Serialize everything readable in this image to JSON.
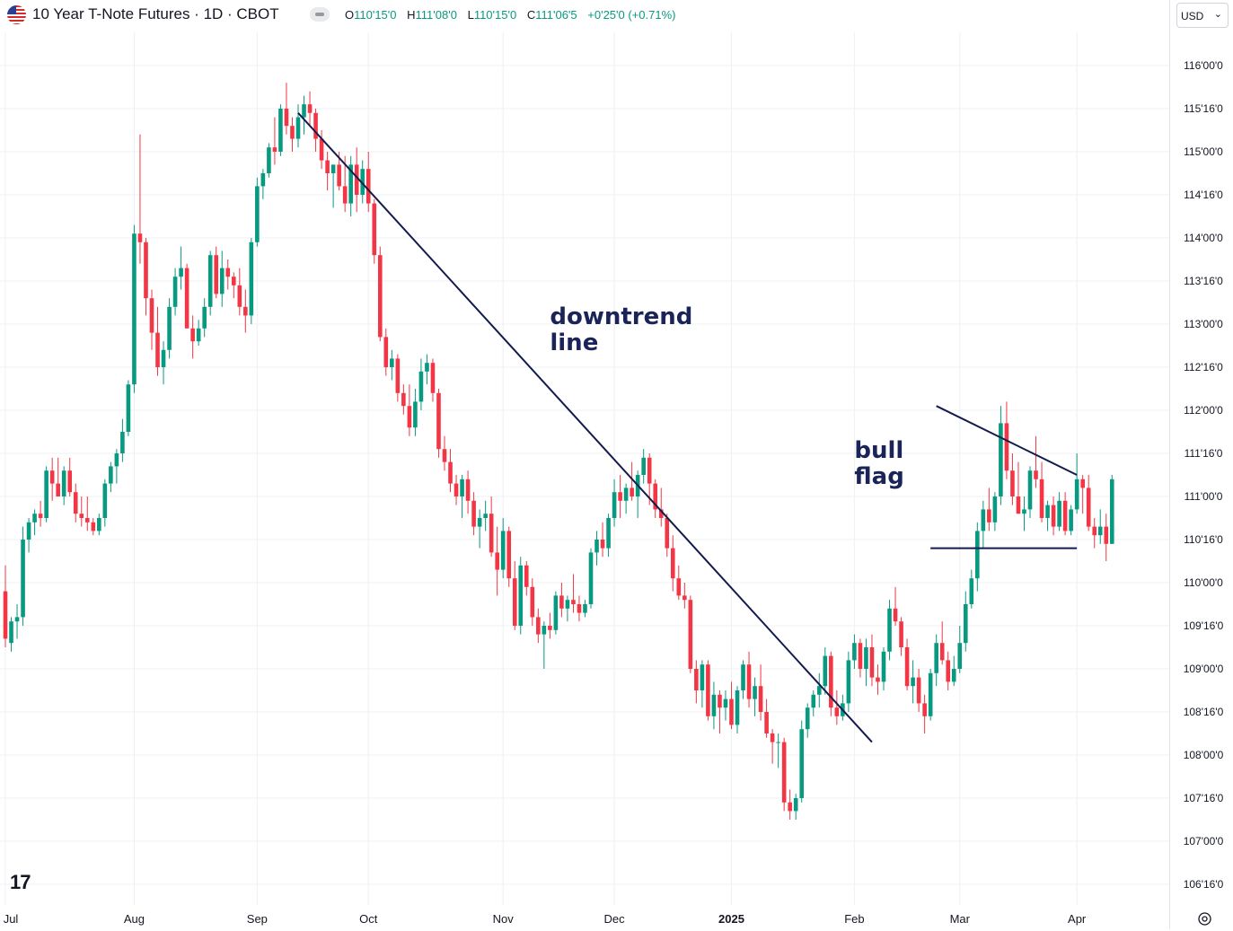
{
  "header": {
    "title": "10 Year T-Note Futures · 1D · CBOT",
    "ohlc": [
      {
        "key": "O",
        "value": "110'15'0"
      },
      {
        "key": "H",
        "value": "111'08'0"
      },
      {
        "key": "L",
        "value": "110'15'0"
      },
      {
        "key": "C",
        "value": "111'06'5"
      }
    ],
    "change": "+0'25'0 (+0.71%)",
    "currency": "USD",
    "flag_icon": "us-flag-icon",
    "logo_text": "17"
  },
  "colors": {
    "up": "#089981",
    "down": "#f23645",
    "trendline": "#131b4d",
    "annotation": "#1a2459",
    "grid": "#eef0f3"
  },
  "chart_data": {
    "type": "candlestick",
    "unit": "points (32nds notation)",
    "ylim": [
      106.25,
      116.5
    ],
    "y_ticks": [
      {
        "value": 106.5,
        "label": "106'16'0"
      },
      {
        "value": 107.0,
        "label": "107'00'0"
      },
      {
        "value": 107.5,
        "label": "107'16'0"
      },
      {
        "value": 108.0,
        "label": "108'00'0"
      },
      {
        "value": 108.5,
        "label": "108'16'0"
      },
      {
        "value": 109.0,
        "label": "109'00'0"
      },
      {
        "value": 109.5,
        "label": "109'16'0"
      },
      {
        "value": 110.0,
        "label": "110'00'0"
      },
      {
        "value": 110.5,
        "label": "110'16'0"
      },
      {
        "value": 111.0,
        "label": "111'00'0"
      },
      {
        "value": 111.5,
        "label": "111'16'0"
      },
      {
        "value": 112.0,
        "label": "112'00'0"
      },
      {
        "value": 112.5,
        "label": "112'16'0"
      },
      {
        "value": 113.0,
        "label": "113'00'0"
      },
      {
        "value": 113.5,
        "label": "113'16'0"
      },
      {
        "value": 114.0,
        "label": "114'00'0"
      },
      {
        "value": 114.5,
        "label": "114'16'0"
      },
      {
        "value": 115.0,
        "label": "115'00'0"
      },
      {
        "value": 115.5,
        "label": "115'16'0"
      },
      {
        "value": 116.0,
        "label": "116'00'0"
      }
    ],
    "x_ticks": [
      {
        "label": "Jul",
        "index": 0,
        "bold": false
      },
      {
        "label": "Aug",
        "index": 22,
        "bold": false
      },
      {
        "label": "Sep",
        "index": 43,
        "bold": false
      },
      {
        "label": "Oct",
        "index": 62,
        "bold": false
      },
      {
        "label": "Nov",
        "index": 85,
        "bold": false
      },
      {
        "label": "Dec",
        "index": 104,
        "bold": false
      },
      {
        "label": "2025",
        "index": 124,
        "bold": true
      },
      {
        "label": "Feb",
        "index": 145,
        "bold": false
      },
      {
        "label": "Mar",
        "index": 163,
        "bold": false
      },
      {
        "label": "Apr",
        "index": 183,
        "bold": false
      }
    ],
    "candles": [
      [
        109.9,
        110.2,
        109.25,
        109.35
      ],
      [
        109.3,
        109.6,
        109.2,
        109.55
      ],
      [
        109.55,
        109.75,
        109.35,
        109.6
      ],
      [
        109.6,
        110.65,
        109.5,
        110.5
      ],
      [
        110.5,
        110.75,
        110.35,
        110.7
      ],
      [
        110.7,
        110.85,
        110.55,
        110.8
      ],
      [
        110.8,
        110.95,
        110.65,
        110.75
      ],
      [
        110.75,
        111.35,
        110.7,
        111.3
      ],
      [
        111.3,
        111.45,
        110.95,
        111.15
      ],
      [
        111.15,
        111.45,
        111.0,
        111.0
      ],
      [
        111.0,
        111.35,
        110.9,
        111.3
      ],
      [
        111.3,
        111.45,
        111.0,
        111.05
      ],
      [
        111.05,
        111.15,
        110.7,
        110.8
      ],
      [
        110.8,
        111.0,
        110.65,
        110.75
      ],
      [
        110.75,
        111.0,
        110.6,
        110.7
      ],
      [
        110.7,
        110.75,
        110.55,
        110.6
      ],
      [
        110.6,
        110.8,
        110.55,
        110.75
      ],
      [
        110.75,
        111.2,
        110.65,
        111.15
      ],
      [
        111.15,
        111.4,
        111.05,
        111.35
      ],
      [
        111.35,
        111.55,
        111.15,
        111.5
      ],
      [
        111.5,
        111.9,
        111.4,
        111.75
      ],
      [
        111.75,
        112.35,
        111.7,
        112.3
      ],
      [
        112.3,
        114.15,
        112.2,
        114.05
      ],
      [
        114.05,
        115.2,
        113.7,
        113.95
      ],
      [
        113.95,
        114.0,
        113.1,
        113.3
      ],
      [
        113.3,
        113.4,
        112.7,
        112.9
      ],
      [
        112.9,
        113.2,
        112.4,
        112.5
      ],
      [
        112.5,
        112.8,
        112.3,
        112.7
      ],
      [
        112.7,
        113.3,
        112.6,
        113.2
      ],
      [
        113.2,
        113.65,
        113.1,
        113.55
      ],
      [
        113.55,
        113.9,
        113.4,
        113.65
      ],
      [
        113.65,
        113.7,
        113.0,
        112.95
      ],
      [
        112.95,
        113.1,
        112.6,
        112.8
      ],
      [
        112.8,
        113.05,
        112.75,
        112.95
      ],
      [
        112.95,
        113.3,
        112.85,
        113.2
      ],
      [
        113.2,
        113.85,
        113.1,
        113.8
      ],
      [
        113.8,
        113.9,
        113.3,
        113.35
      ],
      [
        113.35,
        113.85,
        113.2,
        113.65
      ],
      [
        113.65,
        113.75,
        113.4,
        113.55
      ],
      [
        113.55,
        113.6,
        113.3,
        113.45
      ],
      [
        113.45,
        113.65,
        113.1,
        113.2
      ],
      [
        113.2,
        113.4,
        112.9,
        113.1
      ],
      [
        113.1,
        114.0,
        113.0,
        113.95
      ],
      [
        113.95,
        114.7,
        113.9,
        114.6
      ],
      [
        114.6,
        114.8,
        114.45,
        114.75
      ],
      [
        114.75,
        115.1,
        114.7,
        115.05
      ],
      [
        115.05,
        115.4,
        114.85,
        115.0
      ],
      [
        115.0,
        115.55,
        114.95,
        115.5
      ],
      [
        115.5,
        115.8,
        115.2,
        115.3
      ],
      [
        115.3,
        115.4,
        115.0,
        115.15
      ],
      [
        115.15,
        115.55,
        115.05,
        115.4
      ],
      [
        115.4,
        115.65,
        115.2,
        115.55
      ],
      [
        115.55,
        115.7,
        115.3,
        115.45
      ],
      [
        115.45,
        115.5,
        115.0,
        115.15
      ],
      [
        115.15,
        115.25,
        114.8,
        114.9
      ],
      [
        114.9,
        115.0,
        114.55,
        114.75
      ],
      [
        114.75,
        114.85,
        114.35,
        114.85
      ],
      [
        114.85,
        115.0,
        114.55,
        114.6
      ],
      [
        114.6,
        114.95,
        114.3,
        114.4
      ],
      [
        114.4,
        114.95,
        114.25,
        114.85
      ],
      [
        114.85,
        115.05,
        114.3,
        114.5
      ],
      [
        114.5,
        114.9,
        114.4,
        114.8
      ],
      [
        114.8,
        115.0,
        114.3,
        114.4
      ],
      [
        114.4,
        114.45,
        113.7,
        113.8
      ],
      [
        113.8,
        113.9,
        112.8,
        112.85
      ],
      [
        112.85,
        112.95,
        112.4,
        112.5
      ],
      [
        112.5,
        112.7,
        112.35,
        112.6
      ],
      [
        112.6,
        112.65,
        112.1,
        112.2
      ],
      [
        112.2,
        112.3,
        111.95,
        112.05
      ],
      [
        112.05,
        112.3,
        111.7,
        111.8
      ],
      [
        111.8,
        112.25,
        111.7,
        112.1
      ],
      [
        112.1,
        112.6,
        112.0,
        112.45
      ],
      [
        112.45,
        112.65,
        112.3,
        112.55
      ],
      [
        112.55,
        112.6,
        112.1,
        112.2
      ],
      [
        112.2,
        112.25,
        111.45,
        111.55
      ],
      [
        111.55,
        111.7,
        111.3,
        111.4
      ],
      [
        111.4,
        111.55,
        111.05,
        111.15
      ],
      [
        111.15,
        111.25,
        110.9,
        111.0
      ],
      [
        111.0,
        111.25,
        110.75,
        111.2
      ],
      [
        111.2,
        111.3,
        110.8,
        110.95
      ],
      [
        110.95,
        111.05,
        110.55,
        110.65
      ],
      [
        110.65,
        110.85,
        110.4,
        110.75
      ],
      [
        110.75,
        110.95,
        110.6,
        110.8
      ],
      [
        110.8,
        111.0,
        110.3,
        110.35
      ],
      [
        110.35,
        110.65,
        109.85,
        110.15
      ],
      [
        110.15,
        110.75,
        110.05,
        110.6
      ],
      [
        110.6,
        110.65,
        109.95,
        110.05
      ],
      [
        110.05,
        110.25,
        109.45,
        109.5
      ],
      [
        109.5,
        110.3,
        109.4,
        110.2
      ],
      [
        110.2,
        110.25,
        109.85,
        109.95
      ],
      [
        109.95,
        110.05,
        109.5,
        109.6
      ],
      [
        109.6,
        109.7,
        109.3,
        109.4
      ],
      [
        109.4,
        109.55,
        109.0,
        109.5
      ],
      [
        109.5,
        109.65,
        109.35,
        109.45
      ],
      [
        109.45,
        109.9,
        109.4,
        109.85
      ],
      [
        109.85,
        110.0,
        109.6,
        109.7
      ],
      [
        109.7,
        109.85,
        109.55,
        109.8
      ],
      [
        109.8,
        110.1,
        109.65,
        109.75
      ],
      [
        109.75,
        109.85,
        109.55,
        109.65
      ],
      [
        109.65,
        109.8,
        109.6,
        109.75
      ],
      [
        109.75,
        110.4,
        109.7,
        110.35
      ],
      [
        110.35,
        110.6,
        110.2,
        110.5
      ],
      [
        110.5,
        110.7,
        110.3,
        110.4
      ],
      [
        110.4,
        110.8,
        110.3,
        110.75
      ],
      [
        110.75,
        111.2,
        110.65,
        111.05
      ],
      [
        111.05,
        111.25,
        110.75,
        110.95
      ],
      [
        110.95,
        111.15,
        110.8,
        111.1
      ],
      [
        111.1,
        111.4,
        110.95,
        111.0
      ],
      [
        111.0,
        111.3,
        110.75,
        111.25
      ],
      [
        111.25,
        111.55,
        111.15,
        111.45
      ],
      [
        111.45,
        111.5,
        110.9,
        111.15
      ],
      [
        111.15,
        111.2,
        110.75,
        110.85
      ],
      [
        110.85,
        111.1,
        110.65,
        110.75
      ],
      [
        110.75,
        110.8,
        110.3,
        110.4
      ],
      [
        110.4,
        110.55,
        109.9,
        110.05
      ],
      [
        110.05,
        110.2,
        109.8,
        109.85
      ],
      [
        109.85,
        110.0,
        109.7,
        109.8
      ],
      [
        109.8,
        109.85,
        108.95,
        109.0
      ],
      [
        109.0,
        109.1,
        108.6,
        108.75
      ],
      [
        108.75,
        109.1,
        108.55,
        109.05
      ],
      [
        109.05,
        109.1,
        108.4,
        108.45
      ],
      [
        108.45,
        108.85,
        108.3,
        108.7
      ],
      [
        108.7,
        108.75,
        108.25,
        108.55
      ],
      [
        108.55,
        108.75,
        108.4,
        108.65
      ],
      [
        108.65,
        108.85,
        108.3,
        108.35
      ],
      [
        108.35,
        108.8,
        108.25,
        108.75
      ],
      [
        108.75,
        109.1,
        108.65,
        109.05
      ],
      [
        109.05,
        109.2,
        108.55,
        108.65
      ],
      [
        108.65,
        108.9,
        108.45,
        108.8
      ],
      [
        108.8,
        109.05,
        108.4,
        108.5
      ],
      [
        108.5,
        108.65,
        108.2,
        108.25
      ],
      [
        108.25,
        108.3,
        107.9,
        108.15
      ],
      [
        108.15,
        108.25,
        107.85,
        108.15
      ],
      [
        108.15,
        108.2,
        107.35,
        107.45
      ],
      [
        107.45,
        107.6,
        107.25,
        107.35
      ],
      [
        107.35,
        107.55,
        107.25,
        107.5
      ],
      [
        107.5,
        108.4,
        107.45,
        108.3
      ],
      [
        108.3,
        108.6,
        108.2,
        108.55
      ],
      [
        108.55,
        108.75,
        108.45,
        108.7
      ],
      [
        108.7,
        108.95,
        108.55,
        108.8
      ],
      [
        108.8,
        109.25,
        108.7,
        109.15
      ],
      [
        109.15,
        109.2,
        108.45,
        108.55
      ],
      [
        108.55,
        108.75,
        108.35,
        108.45
      ],
      [
        108.45,
        108.7,
        108.4,
        108.6
      ],
      [
        108.6,
        109.2,
        108.5,
        109.1
      ],
      [
        109.1,
        109.4,
        109.0,
        109.3
      ],
      [
        109.3,
        109.35,
        108.9,
        109.0
      ],
      [
        109.0,
        109.35,
        108.8,
        109.25
      ],
      [
        109.25,
        109.4,
        108.8,
        108.9
      ],
      [
        108.9,
        109.05,
        108.7,
        108.85
      ],
      [
        108.85,
        109.25,
        108.75,
        109.2
      ],
      [
        109.2,
        109.8,
        109.1,
        109.7
      ],
      [
        109.7,
        109.95,
        109.5,
        109.55
      ],
      [
        109.55,
        109.6,
        109.15,
        109.25
      ],
      [
        109.25,
        109.35,
        108.75,
        108.8
      ],
      [
        108.8,
        109.1,
        108.6,
        108.9
      ],
      [
        108.9,
        109.0,
        108.5,
        108.6
      ],
      [
        108.6,
        108.7,
        108.25,
        108.45
      ],
      [
        108.45,
        109.0,
        108.4,
        108.95
      ],
      [
        108.95,
        109.4,
        108.8,
        109.3
      ],
      [
        109.3,
        109.55,
        109.05,
        109.1
      ],
      [
        109.1,
        109.2,
        108.75,
        108.85
      ],
      [
        108.85,
        109.15,
        108.8,
        109.0
      ],
      [
        109.0,
        109.5,
        108.95,
        109.3
      ],
      [
        109.3,
        109.9,
        109.2,
        109.75
      ],
      [
        109.75,
        110.15,
        109.7,
        110.05
      ],
      [
        110.05,
        110.7,
        109.9,
        110.6
      ],
      [
        110.6,
        110.95,
        110.4,
        110.85
      ],
      [
        110.85,
        111.1,
        110.6,
        110.7
      ],
      [
        110.7,
        111.05,
        110.6,
        111.0
      ],
      [
        111.0,
        112.05,
        110.9,
        111.85
      ],
      [
        111.85,
        112.1,
        111.2,
        111.3
      ],
      [
        111.3,
        111.5,
        110.9,
        111.0
      ],
      [
        111.0,
        111.4,
        110.8,
        110.8
      ],
      [
        110.8,
        111.0,
        110.6,
        110.85
      ],
      [
        110.85,
        111.35,
        110.75,
        111.3
      ],
      [
        111.3,
        111.7,
        111.1,
        111.2
      ],
      [
        111.2,
        111.4,
        110.7,
        110.75
      ],
      [
        110.75,
        110.95,
        110.6,
        110.9
      ],
      [
        110.9,
        111.0,
        110.55,
        110.65
      ],
      [
        110.65,
        111.05,
        110.6,
        110.95
      ],
      [
        110.95,
        111.05,
        110.55,
        110.6
      ],
      [
        110.6,
        110.9,
        110.55,
        110.85
      ],
      [
        110.85,
        111.5,
        110.8,
        111.2
      ],
      [
        111.2,
        111.25,
        110.8,
        111.1
      ],
      [
        111.1,
        111.25,
        110.6,
        110.65
      ],
      [
        110.65,
        110.75,
        110.4,
        110.55
      ],
      [
        110.55,
        110.85,
        110.45,
        110.65
      ],
      [
        110.65,
        110.8,
        110.25,
        110.45
      ],
      [
        110.45,
        111.25,
        110.45,
        111.2
      ]
    ],
    "trendlines": [
      {
        "name": "downtrend-line",
        "points": [
          [
            50,
            115.45
          ],
          [
            148,
            108.15
          ]
        ]
      },
      {
        "name": "flag-upper",
        "points": [
          [
            159,
            112.05
          ],
          [
            183,
            111.25
          ]
        ]
      },
      {
        "name": "flag-lower",
        "points": [
          [
            158,
            110.4
          ],
          [
            183,
            110.4
          ]
        ]
      }
    ],
    "annotations": [
      {
        "lines": [
          "downtrend",
          "line"
        ],
        "anchor": [
          93,
          113.0
        ]
      },
      {
        "lines": [
          "bull",
          "flag"
        ],
        "anchor": [
          145,
          111.45
        ]
      }
    ]
  }
}
